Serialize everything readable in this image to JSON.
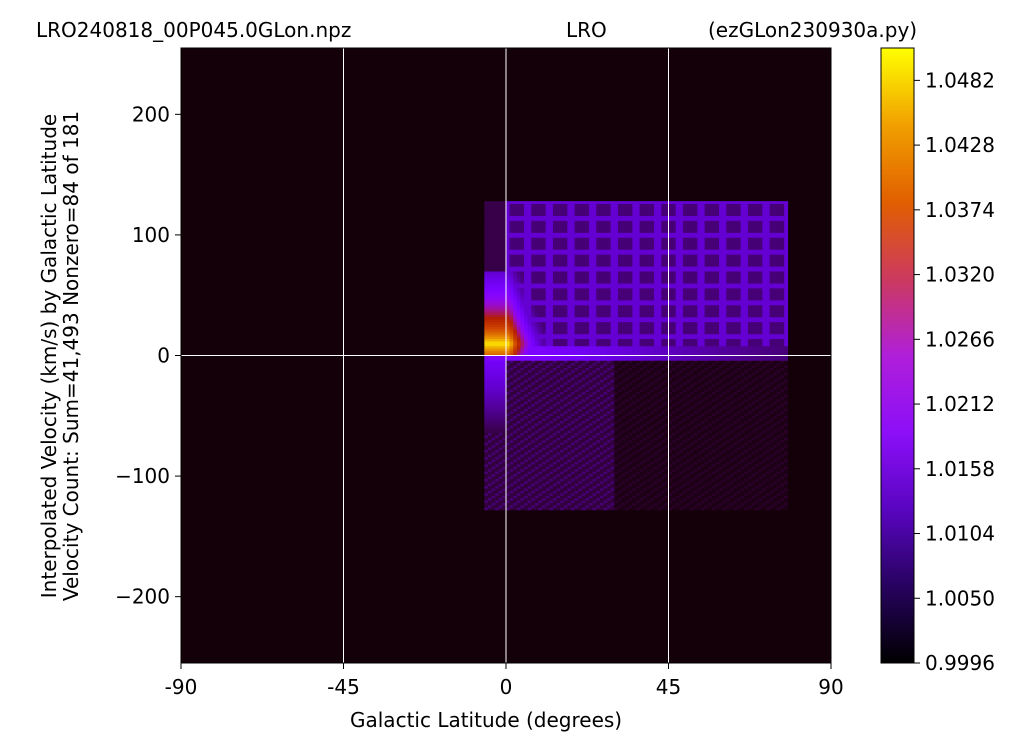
{
  "chart_data": {
    "type": "heatmap",
    "title": {
      "left": "LRO240818_00P045.0GLon.npz",
      "center": "LRO",
      "right": "(ezGLon230930a.py)"
    },
    "xlabel": "Galactic Latitude (degrees)",
    "ylabel_line1": "Interpolated Velocity (km/s) by Galactic Latitude",
    "ylabel_line2": "Velocity Count: Sum=41,493 Nonzero=84 of 181",
    "xlim": [
      -90,
      90
    ],
    "ylim": [
      -255,
      255
    ],
    "xticks": [
      -90,
      -45,
      0,
      45,
      90
    ],
    "xtick_labels": [
      "-90",
      "-45",
      "0",
      "45",
      "90"
    ],
    "yticks": [
      -200,
      -100,
      0,
      100,
      200
    ],
    "ytick_labels": [
      "−200",
      "−100",
      "0",
      "100",
      "200"
    ],
    "grid": true,
    "grid_x": [
      -45,
      0,
      45
    ],
    "grid_y": [
      0
    ],
    "colormap": "gnuplot",
    "colorbar": {
      "min": 0.9996,
      "max": 1.0509,
      "ticks": [
        0.9996,
        1.005,
        1.0104,
        1.0158,
        1.0212,
        1.0266,
        1.032,
        1.0374,
        1.0428,
        1.0482
      ],
      "tick_labels": [
        "0.9996",
        "1.0050",
        "1.0104",
        "1.0158",
        "1.0212",
        "1.0266",
        "1.0320",
        "1.0374",
        "1.0428",
        "1.0482"
      ]
    },
    "data_region": {
      "lat_min": -6,
      "lat_max": 78,
      "vel_min": -128,
      "vel_max": 128,
      "background_value": 0.9996
    },
    "features": [
      {
        "name": "peak near velocity 0",
        "lat": [
          -5,
          12
        ],
        "vel": [
          0,
          70
        ],
        "value_max": 1.0495
      },
      {
        "name": "velocity 0 band",
        "lat": [
          -6,
          78
        ],
        "vel": [
          -3,
          8
        ],
        "value": 1.012
      },
      {
        "name": "negative velocity lobe",
        "lat": [
          -6,
          0
        ],
        "vel": [
          -65,
          0
        ],
        "value": 1.011
      }
    ]
  }
}
